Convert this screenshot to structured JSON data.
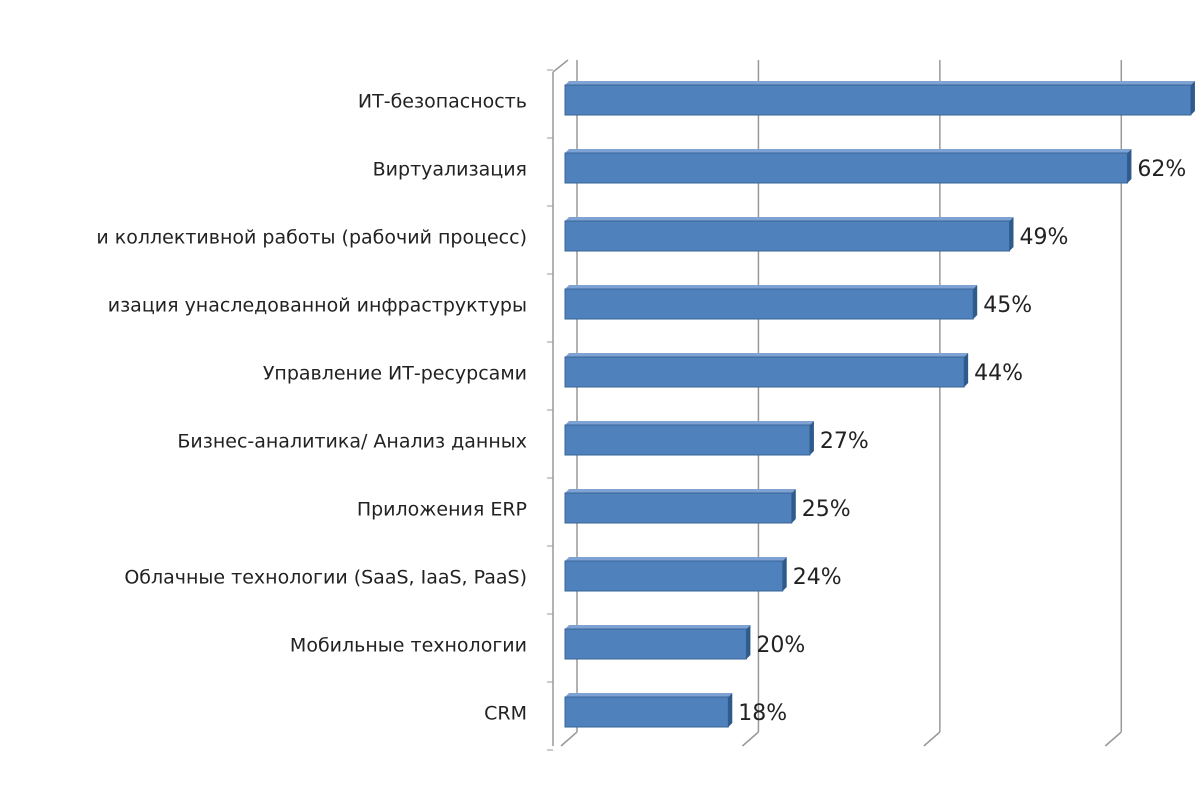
{
  "chart_data": {
    "type": "bar",
    "orientation": "horizontal",
    "categories": [
      "ИТ-безопасность",
      "Виртуализация",
      "и коллективной работы (рабочий процесс)",
      "изация унаследованной инфраструктуры",
      "Управление ИТ-ресурсами",
      "Бизнес-аналитика/ Анализ данных",
      "Приложения ERP",
      "Облачные технологии (SaaS, IaaS, PaaS)",
      "Мобильные технологии",
      "CRM"
    ],
    "values": [
      69,
      62,
      49,
      45,
      44,
      27,
      25,
      24,
      20,
      18
    ],
    "value_labels": [
      null,
      "62%",
      "49%",
      "45%",
      "44%",
      "27%",
      "25%",
      "24%",
      "20%",
      "18%"
    ],
    "color": "#4f81bd",
    "xlim": [
      0,
      70
    ],
    "grid_lines": [
      0,
      20,
      40,
      60
    ]
  }
}
